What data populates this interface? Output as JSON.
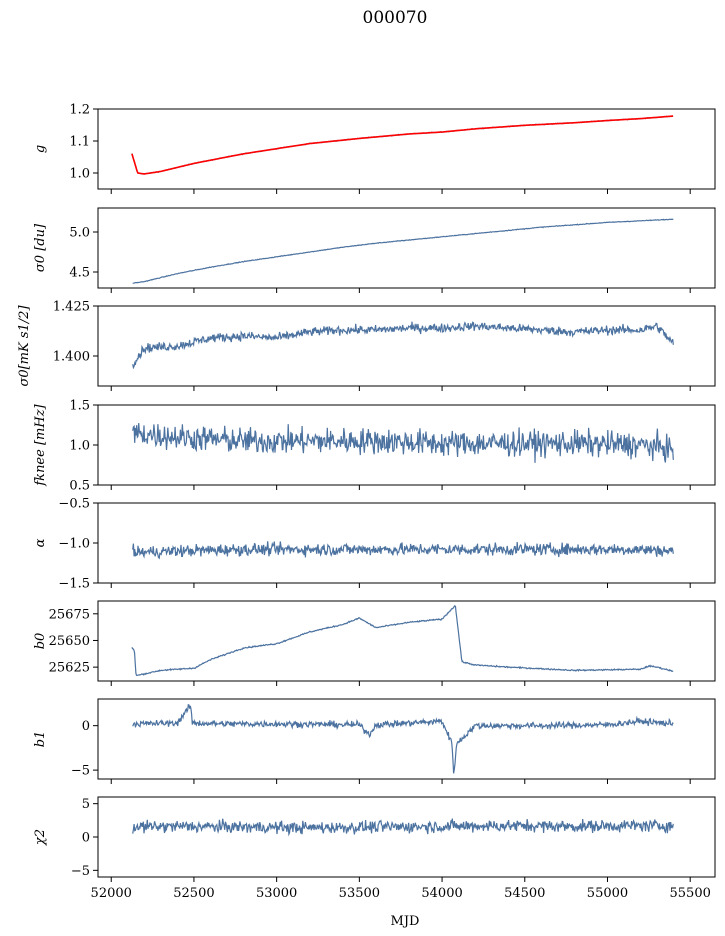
{
  "figure": {
    "title": "000070",
    "xlabel": "MJD",
    "xlim": [
      51920,
      55650
    ],
    "x_ticks": [
      52000,
      52500,
      53000,
      53500,
      54000,
      54500,
      55000,
      55500
    ],
    "x_tick_labels": [
      "52000",
      "52500",
      "53000",
      "53500",
      "54000",
      "54500",
      "55000",
      "55500"
    ],
    "line_color": "#4c72a0",
    "fit_color": "#ff0000"
  },
  "chart_data": [
    {
      "type": "line",
      "ylabel": "g",
      "ylim": [
        0.95,
        1.2
      ],
      "y_ticks": [
        1.0,
        1.1,
        1.2
      ],
      "y_tick_labels": [
        "1.0",
        "1.1",
        "1.2"
      ],
      "x": [
        52125,
        52160,
        52200,
        52300,
        52500,
        52800,
        53000,
        53200,
        53500,
        53800,
        54000,
        54200,
        54500,
        54800,
        55000,
        55200,
        55400
      ],
      "series": [
        {
          "values": [
            1.06,
            1.0,
            0.997,
            1.005,
            1.03,
            1.06,
            1.076,
            1.092,
            1.108,
            1.122,
            1.128,
            1.138,
            1.149,
            1.157,
            1.164,
            1.17,
            1.178
          ]
        },
        {
          "values": [
            1.06,
            1.0,
            0.997,
            1.005,
            1.03,
            1.06,
            1.076,
            1.092,
            1.108,
            1.122,
            1.128,
            1.138,
            1.149,
            1.157,
            1.164,
            1.17,
            1.178
          ]
        }
      ]
    },
    {
      "type": "line",
      "ylabel": "σ0 [du]",
      "ylim": [
        4.3,
        5.3
      ],
      "y_ticks": [
        4.5,
        5.0
      ],
      "y_tick_labels": [
        "4.5",
        "5.0"
      ],
      "x": [
        52130,
        52200,
        52400,
        52600,
        52800,
        53000,
        53200,
        53400,
        53600,
        53800,
        54000,
        54200,
        54400,
        54600,
        54800,
        55000,
        55200,
        55400
      ],
      "series": [
        {
          "values": [
            4.36,
            4.38,
            4.48,
            4.56,
            4.63,
            4.69,
            4.75,
            4.81,
            4.86,
            4.9,
            4.94,
            4.98,
            5.02,
            5.06,
            5.09,
            5.12,
            5.14,
            5.16
          ]
        }
      ]
    },
    {
      "type": "line",
      "ylabel": "σ0[mK s1/2]",
      "ylim": [
        1.385,
        1.425
      ],
      "y_ticks": [
        1.4,
        1.425
      ],
      "y_tick_labels": [
        "1.400",
        "1.425"
      ],
      "x": [
        52130,
        52200,
        52400,
        52600,
        52800,
        53000,
        53200,
        53400,
        53600,
        53800,
        54000,
        54200,
        54400,
        54600,
        54800,
        55000,
        55200,
        55300,
        55400
      ],
      "series": [
        {
          "values": [
            1.396,
            1.404,
            1.405,
            1.409,
            1.41,
            1.409,
            1.412,
            1.413,
            1.413,
            1.414,
            1.414,
            1.415,
            1.414,
            1.413,
            1.412,
            1.413,
            1.413,
            1.415,
            1.406
          ]
        }
      ]
    },
    {
      "type": "line",
      "ylabel": "fknee [mHz]",
      "ylim": [
        0.5,
        1.5
      ],
      "y_ticks": [
        0.5,
        1.0,
        1.5
      ],
      "y_tick_labels": [
        "0.5",
        "1.0",
        "1.5"
      ],
      "x": [
        52130,
        52400,
        52800,
        53200,
        53600,
        54000,
        54400,
        54800,
        55200,
        55400
      ],
      "series": [
        {
          "values": [
            1.15,
            1.1,
            1.05,
            1.05,
            1.05,
            1.02,
            1.02,
            1.02,
            1.0,
            0.95
          ]
        }
      ]
    },
    {
      "type": "line",
      "ylabel": "α",
      "ylim": [
        -1.5,
        -0.5
      ],
      "y_ticks": [
        -1.5,
        -1.0,
        -0.5
      ],
      "y_tick_labels": [
        "−1.5",
        "−1.0",
        "−0.5"
      ],
      "x": [
        52130,
        52400,
        52800,
        53200,
        53600,
        54000,
        54400,
        54800,
        55200,
        55400
      ],
      "series": [
        {
          "values": [
            -1.12,
            -1.1,
            -1.08,
            -1.08,
            -1.08,
            -1.08,
            -1.08,
            -1.08,
            -1.08,
            -1.1
          ]
        }
      ]
    },
    {
      "type": "line",
      "ylabel": "b0",
      "ylim": [
        25612,
        25687
      ],
      "y_ticks": [
        25625,
        25650,
        25675
      ],
      "y_tick_labels": [
        "25625",
        "25650",
        "25675"
      ],
      "x": [
        52125,
        52140,
        52150,
        52300,
        52500,
        52600,
        52800,
        53000,
        53200,
        53400,
        53500,
        53600,
        53800,
        54000,
        54080,
        54120,
        54200,
        54400,
        54800,
        55200,
        55250,
        55300,
        55400
      ],
      "series": [
        {
          "values": [
            25643,
            25641,
            25617,
            25622,
            25624,
            25632,
            25643,
            25647,
            25658,
            25665,
            25671,
            25662,
            25667,
            25670,
            25683,
            25630,
            25627,
            25625,
            25622,
            25623,
            25626,
            25625,
            25621
          ]
        }
      ]
    },
    {
      "type": "line",
      "ylabel": "b1",
      "ylim": [
        -6,
        3
      ],
      "y_ticks": [
        -5,
        0
      ],
      "y_tick_labels": [
        "−5",
        "0"
      ],
      "x": [
        52130,
        52400,
        52480,
        52490,
        52700,
        53000,
        53500,
        53560,
        53600,
        54000,
        54060,
        54070,
        54090,
        54200,
        54600,
        55000,
        55200,
        55400
      ],
      "series": [
        {
          "values": [
            0.2,
            0.3,
            2.3,
            0.3,
            0.2,
            0.2,
            0.1,
            -1.0,
            0.1,
            0.5,
            -2.0,
            -5.3,
            -2.0,
            0.0,
            0.0,
            0.1,
            0.5,
            0.2
          ]
        }
      ]
    },
    {
      "type": "line",
      "ylabel": "χ2",
      "ylim": [
        -6,
        6
      ],
      "y_ticks": [
        -5,
        0,
        5
      ],
      "y_tick_labels": [
        "−5",
        "0",
        "5"
      ],
      "x": [
        52130,
        52400,
        52800,
        53200,
        53600,
        54000,
        54400,
        54800,
        55200,
        55400
      ],
      "series": [
        {
          "values": [
            1.5,
            1.6,
            1.5,
            1.4,
            1.5,
            1.6,
            1.7,
            1.6,
            1.7,
            1.7
          ]
        }
      ]
    }
  ]
}
